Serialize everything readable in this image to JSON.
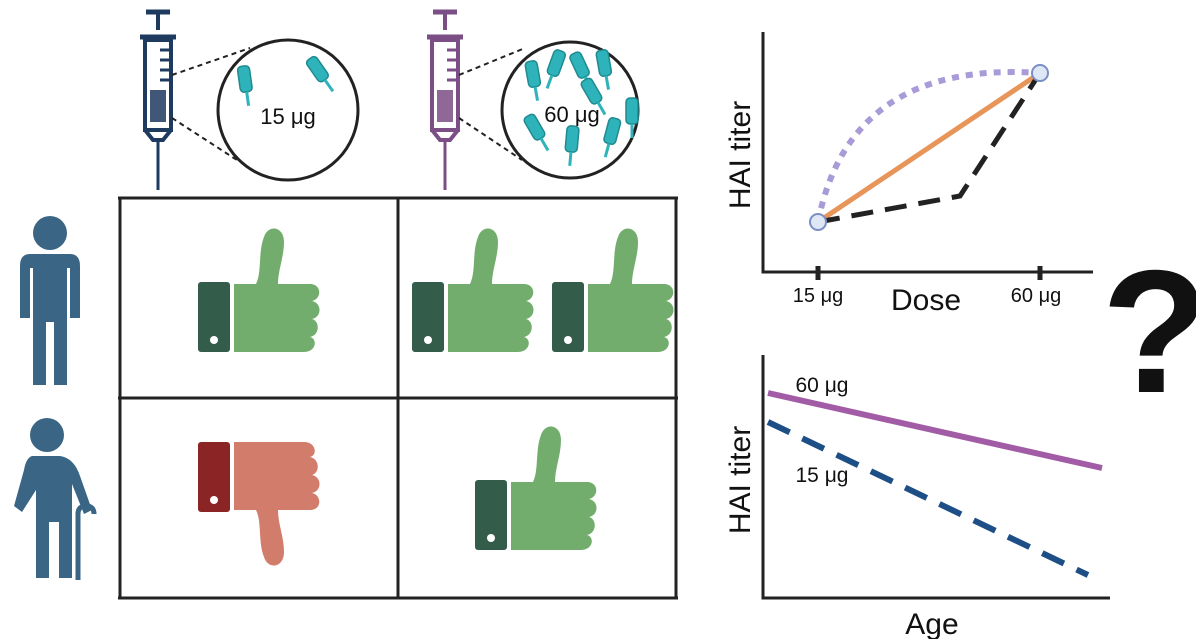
{
  "panels": {
    "low_dose": {
      "label": "15 μg"
    },
    "high_dose": {
      "label": "60 μg"
    }
  },
  "dose_plot": {
    "y_label": "HAI titer",
    "x_label": "Dose",
    "x_ticks": [
      "15 μg",
      "60 μg"
    ]
  },
  "age_plot": {
    "y_label": "HAI titer",
    "x_label": "Age",
    "series_labels": [
      "60 μg",
      "15 μg"
    ]
  },
  "question_mark": "?"
}
